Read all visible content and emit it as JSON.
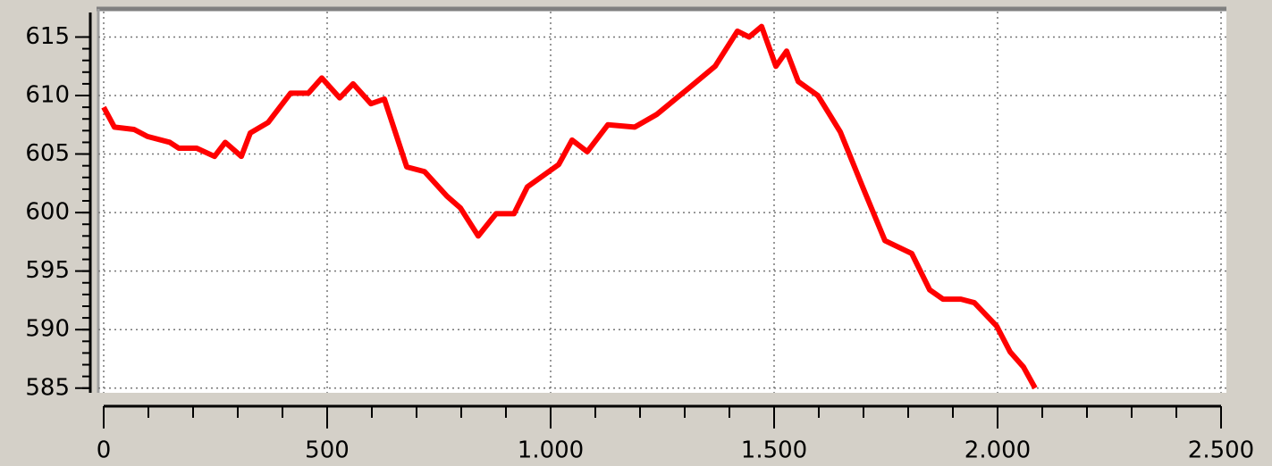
{
  "chart_data": {
    "type": "line",
    "x": [
      0,
      24,
      68,
      98,
      148,
      168,
      208,
      248,
      272,
      308,
      328,
      368,
      418,
      458,
      488,
      528,
      558,
      598,
      628,
      678,
      718,
      768,
      798,
      838,
      878,
      918,
      948,
      1018,
      1048,
      1082,
      1128,
      1188,
      1238,
      1308,
      1368,
      1418,
      1444,
      1472,
      1504,
      1528,
      1554,
      1598,
      1648,
      1698,
      1748,
      1808,
      1848,
      1878,
      1918,
      1948,
      1998,
      2028,
      2058,
      2084
    ],
    "series": [
      {
        "color": "#ff0000",
        "values": [
          609.0,
          607.3,
          607.1,
          606.5,
          606.0,
          605.5,
          605.5,
          604.8,
          606.0,
          604.8,
          606.8,
          607.7,
          610.2,
          610.2,
          611.5,
          609.8,
          611.0,
          609.3,
          609.7,
          603.9,
          603.5,
          601.4,
          600.4,
          598.0,
          599.9,
          599.9,
          602.2,
          604.1,
          606.2,
          605.2,
          607.5,
          607.3,
          608.4,
          610.6,
          612.5,
          615.5,
          615.0,
          615.9,
          612.5,
          613.8,
          611.2,
          610.0,
          606.9,
          602.2,
          597.6,
          596.5,
          593.4,
          592.6,
          592.6,
          592.3,
          590.3,
          588.1,
          586.8,
          585.0
        ]
      }
    ],
    "xlim": [
      -12,
      2512
    ],
    "ylim": [
      584.6,
      617.4
    ],
    "xticks": [
      0,
      500,
      {
        "value": 1000,
        "label": "1.000"
      },
      {
        "value": 1500,
        "label": "1.500"
      },
      {
        "value": 2000,
        "label": "2.000"
      },
      {
        "value": 2500,
        "label": "2.500"
      }
    ],
    "yticks": [
      585,
      590,
      595,
      600,
      605,
      610,
      615
    ],
    "xminorticks": [
      0,
      100,
      200,
      300,
      400,
      500,
      600,
      700,
      800,
      900,
      1000,
      1100,
      1200,
      1300,
      1400,
      1500,
      1600,
      1700,
      1800,
      1900,
      2000,
      2100,
      2200,
      2300,
      2400,
      2500
    ],
    "yminorticks": [
      585,
      586,
      587,
      588,
      589,
      590,
      591,
      592,
      593,
      594,
      595,
      596,
      597,
      598,
      599,
      600,
      601,
      602,
      603,
      604,
      605,
      606,
      607,
      608,
      609,
      610,
      611,
      612,
      613,
      614,
      615
    ],
    "grid": true
  }
}
